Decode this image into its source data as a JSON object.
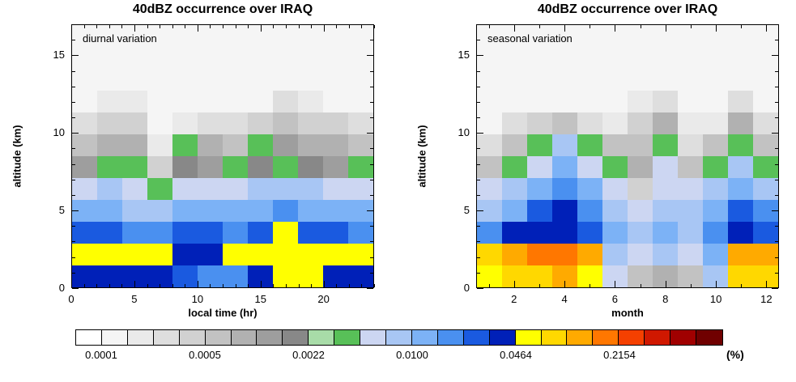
{
  "palette": [
    "#ffffff",
    "#f5f5f5",
    "#eaeaea",
    "#dedede",
    "#d1d1d1",
    "#c2c2c2",
    "#b1b1b1",
    "#9e9e9e",
    "#888888",
    "#a8dca8",
    "#58c058",
    "#ccd6f2",
    "#a8c6f4",
    "#7cb2f6",
    "#4a90f0",
    "#1a5ae0",
    "#0020b8",
    "#ffff00",
    "#ffd800",
    "#ffaa00",
    "#ff7700",
    "#f54000",
    "#d01800",
    "#a00000",
    "#700000"
  ],
  "colorbar": {
    "labels": [
      "0.0001",
      "0.0005",
      "0.0022",
      "0.0100",
      "0.0464",
      "0.2154"
    ],
    "label_boundaries": [
      1,
      5,
      9,
      13,
      17,
      21
    ],
    "segments": 25,
    "unit": "(%)",
    "scale_note": "logarithmic occurrence frequency in percent; segment i spans 10^(-4+(i-1)/6) to 10^(-4+i/6) %"
  },
  "chart_data": [
    {
      "type": "heatmap",
      "title": "40dBZ occurrence over IRAQ",
      "annotation": "diurnal variation",
      "xlabel": "local time (hr)",
      "ylabel": "altitude (km)",
      "x_range": [
        0,
        24
      ],
      "y_range": [
        0,
        17
      ],
      "x_bin_hours": 2,
      "y_bin_km": 1.4167,
      "x_ticks": {
        "major": [
          0,
          5,
          10,
          15,
          20
        ],
        "labels": [
          "0",
          "5",
          "10",
          "15",
          "20"
        ],
        "minor_step": 1
      },
      "y_ticks": {
        "major": [
          0,
          5,
          10,
          15
        ],
        "labels": [
          "0",
          "5",
          "10",
          "15"
        ],
        "minor_step": 1
      },
      "n_cols": 12,
      "n_rows": 12,
      "grid_note": "rows listed top (17 km) to bottom (0 km); values are color-level indices into palette (log % scale)",
      "grid_color_levels": [
        [
          1,
          1,
          1,
          1,
          1,
          1,
          1,
          1,
          1,
          1,
          1,
          1
        ],
        [
          1,
          1,
          1,
          1,
          1,
          1,
          1,
          1,
          1,
          1,
          1,
          1
        ],
        [
          1,
          1,
          1,
          1,
          1,
          1,
          1,
          1,
          1,
          1,
          1,
          1
        ],
        [
          1,
          2,
          2,
          1,
          1,
          1,
          1,
          1,
          3,
          2,
          1,
          1
        ],
        [
          3,
          4,
          4,
          1,
          2,
          3,
          3,
          4,
          5,
          4,
          4,
          3
        ],
        [
          5,
          6,
          6,
          2,
          10,
          6,
          5,
          10,
          7,
          6,
          6,
          5
        ],
        [
          7,
          10,
          10,
          4,
          8,
          7,
          10,
          8,
          10,
          8,
          7,
          10
        ],
        [
          11,
          12,
          11,
          10,
          11,
          11,
          11,
          12,
          12,
          12,
          11,
          11
        ],
        [
          13,
          13,
          12,
          12,
          13,
          13,
          13,
          13,
          14,
          13,
          13,
          13
        ],
        [
          15,
          15,
          14,
          14,
          15,
          15,
          14,
          15,
          17,
          15,
          15,
          14
        ],
        [
          17,
          17,
          17,
          17,
          16,
          16,
          17,
          17,
          17,
          17,
          17,
          17
        ],
        [
          16,
          16,
          16,
          16,
          15,
          14,
          14,
          16,
          17,
          17,
          16,
          16
        ]
      ]
    },
    {
      "type": "heatmap",
      "title": "40dBZ occurrence over IRAQ",
      "annotation": "seasonal variation",
      "xlabel": "month",
      "ylabel": "altitude (km)",
      "x_range": [
        0.5,
        12.5
      ],
      "y_range": [
        0,
        17
      ],
      "x_bin_months": 1,
      "y_bin_km": 1.4167,
      "x_ticks": {
        "major": [
          2,
          4,
          6,
          8,
          10,
          12
        ],
        "labels": [
          "2",
          "4",
          "6",
          "8",
          "10",
          "12"
        ],
        "minor_step": 1
      },
      "y_ticks": {
        "major": [
          0,
          5,
          10,
          15
        ],
        "labels": [
          "0",
          "5",
          "10",
          "15"
        ],
        "minor_step": 1
      },
      "n_cols": 12,
      "n_rows": 12,
      "grid_note": "rows listed top (17 km) to bottom (0 km); columns are months Jan-Dec; values are color-level indices into palette (log % scale)",
      "grid_color_levels": [
        [
          1,
          1,
          1,
          1,
          1,
          1,
          1,
          1,
          1,
          1,
          1,
          1
        ],
        [
          1,
          1,
          1,
          1,
          1,
          1,
          1,
          1,
          1,
          1,
          1,
          1
        ],
        [
          1,
          1,
          1,
          1,
          1,
          1,
          1,
          1,
          1,
          1,
          1,
          1
        ],
        [
          1,
          1,
          1,
          1,
          1,
          1,
          2,
          3,
          1,
          1,
          3,
          1
        ],
        [
          1,
          3,
          4,
          5,
          3,
          2,
          4,
          6,
          2,
          2,
          6,
          3
        ],
        [
          3,
          5,
          10,
          12,
          10,
          5,
          5,
          10,
          3,
          5,
          10,
          5
        ],
        [
          5,
          10,
          11,
          13,
          11,
          10,
          6,
          11,
          5,
          10,
          12,
          10
        ],
        [
          11,
          12,
          13,
          14,
          13,
          11,
          4,
          11,
          11,
          12,
          13,
          12
        ],
        [
          12,
          13,
          15,
          16,
          14,
          12,
          11,
          12,
          12,
          13,
          15,
          14
        ],
        [
          14,
          16,
          16,
          16,
          15,
          13,
          12,
          13,
          12,
          14,
          16,
          15
        ],
        [
          18,
          19,
          20,
          20,
          19,
          12,
          11,
          12,
          11,
          13,
          19,
          19
        ],
        [
          17,
          18,
          18,
          19,
          17,
          11,
          5,
          6,
          5,
          12,
          18,
          18
        ]
      ]
    }
  ]
}
